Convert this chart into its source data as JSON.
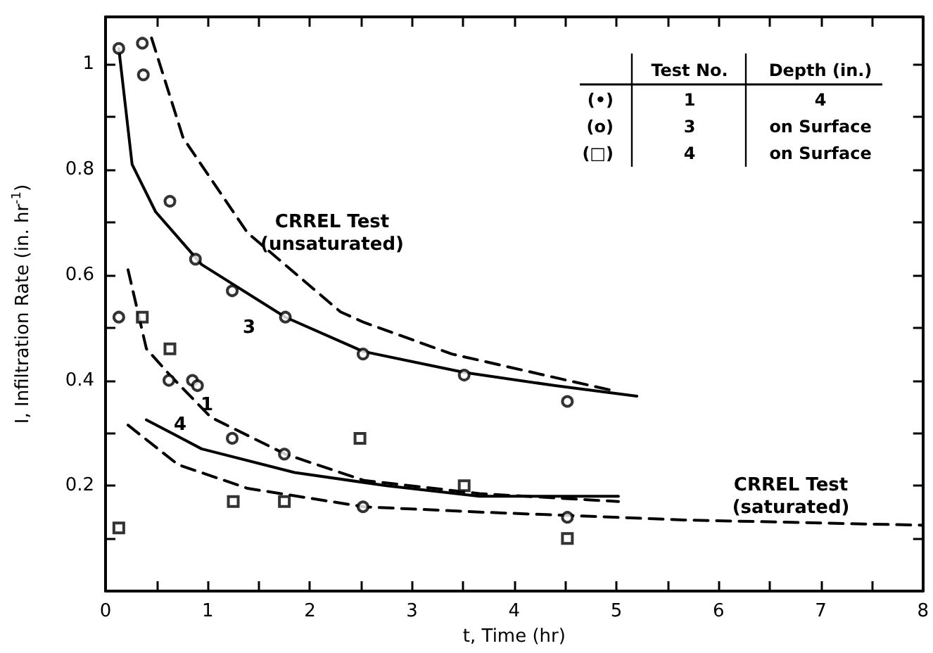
{
  "chart_data": {
    "type": "scatter",
    "xlabel": "t, Time (hr)",
    "ylabel": "I, Infiltration Rate (in. hr$^{-1}$)",
    "xlim": [
      0,
      8
    ],
    "ylim": [
      0,
      1.09
    ],
    "xticks": [
      0,
      {
        "value": 0.5,
        "label": null
      },
      1,
      {
        "value": 1.5,
        "label": null
      },
      2,
      {
        "value": 2.5,
        "label": null
      },
      3,
      {
        "value": 3.5,
        "label": null
      },
      4,
      {
        "value": 4.5,
        "label": null
      },
      5,
      {
        "value": 5.5,
        "label": null
      },
      6,
      {
        "value": 6.5,
        "label": null
      },
      7,
      {
        "value": 7.5,
        "label": null
      },
      8
    ],
    "yticks": [
      {
        "value": 0.1,
        "label": null
      },
      0.2,
      {
        "value": 0.3,
        "label": null
      },
      0.4,
      {
        "value": 0.5,
        "label": null
      },
      0.6,
      {
        "value": 0.7,
        "label": null
      },
      0.8,
      {
        "value": 0.9,
        "label": null
      },
      1.0
    ],
    "grid": false,
    "series": [
      {
        "marker": "circle",
        "color": "#000000",
        "x": [
          0.13,
          0.36,
          0.62,
          0.85,
          1.24,
          1.75,
          2.52,
          4.52
        ],
        "values": [
          0.52,
          1.04,
          0.4,
          0.4,
          0.29,
          0.26,
          0.16,
          0.14
        ]
      },
      {
        "marker": "circle",
        "color": "#000000",
        "x": [
          0.13,
          0.37,
          0.63,
          0.88,
          0.9,
          1.24,
          1.76,
          2.52,
          3.51,
          4.52
        ],
        "values": [
          1.03,
          0.98,
          0.74,
          0.63,
          0.39,
          0.57,
          0.52,
          0.45,
          0.41,
          0.36
        ]
      },
      {
        "marker": "square",
        "color": "#000000",
        "x": [
          0.13,
          0.36,
          0.63,
          1.25,
          1.75,
          2.49,
          3.51,
          4.52
        ],
        "values": [
          0.12,
          0.52,
          0.46,
          0.17,
          0.17,
          0.29,
          0.2,
          0.1
        ]
      },
      {
        "type": "line",
        "line_style": "solid",
        "marker": "none",
        "color": "#000000",
        "x": [
          0.13,
          0.26,
          0.49,
          0.94,
          1.76,
          2.52,
          3.51,
          4.4,
          5.2
        ],
        "values": [
          1.03,
          0.81,
          0.72,
          0.62,
          0.52,
          0.455,
          0.415,
          0.39,
          0.37
        ]
      },
      {
        "type": "line",
        "line_style": "dashed",
        "marker": "none",
        "color": "#000000",
        "x": [
          0.45,
          0.76,
          1.39,
          2.3,
          2.53,
          3.39,
          4.52,
          4.98
        ],
        "values": [
          1.05,
          0.86,
          0.68,
          0.53,
          0.51,
          0.45,
          0.4,
          0.38
        ]
      },
      {
        "type": "line",
        "line_style": "dashed",
        "marker": "none",
        "color": "#000000",
        "x": [
          0.22,
          0.4,
          0.63,
          1.03,
          1.76,
          2.53,
          3.66,
          5.02
        ],
        "values": [
          0.61,
          0.46,
          0.41,
          0.33,
          0.26,
          0.21,
          0.185,
          0.17
        ]
      },
      {
        "type": "line",
        "line_style": "solid",
        "marker": "none",
        "color": "#000000",
        "x": [
          0.4,
          0.94,
          1.85,
          2.75,
          3.66,
          5.02
        ],
        "values": [
          0.325,
          0.27,
          0.225,
          0.2,
          0.18,
          0.18
        ]
      },
      {
        "type": "line",
        "line_style": "dashed",
        "marker": "none",
        "color": "#000000",
        "x": [
          0.22,
          0.71,
          1.39,
          2.53,
          3.66,
          5.66,
          8.0
        ],
        "values": [
          0.315,
          0.24,
          0.195,
          0.16,
          0.15,
          0.135,
          0.125
        ]
      }
    ],
    "annotations": [
      "Test No.",
      "Depth (in.)",
      "(•)",
      "1",
      "4",
      "(o)",
      "3",
      "on Surface",
      "(□)",
      "4",
      "on Surface",
      "CRREL Test\n(unsaturated)",
      "CRREL Test\n(saturated)",
      "3",
      "1",
      "4"
    ]
  }
}
